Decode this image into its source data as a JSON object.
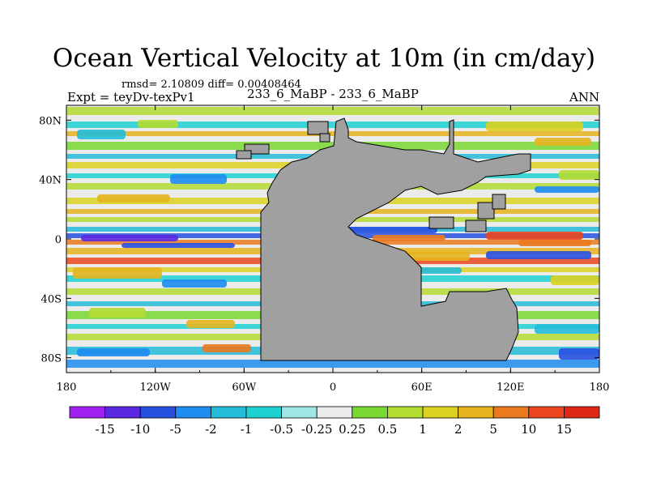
{
  "chart_data": {
    "type": "heatmap",
    "title": "Ocean Vertical Velocity at 10m (in cm/day)",
    "stats": "rmsd= 2.10809  diff= 0.00408464",
    "left_label": "Expt = teyDv-texPv1",
    "center_label": "233_6_MaBP - 233_6_MaBP",
    "right_label": "ANN",
    "units": "cm/day",
    "x_ticks": [
      "180",
      "120W",
      "60W",
      "0",
      "60E",
      "120E",
      "180"
    ],
    "y_ticks": [
      "80N",
      "40N",
      "0",
      "40S",
      "80S"
    ],
    "colorbar": {
      "labels": [
        "-15",
        "-10",
        "-5",
        "-2",
        "-1",
        "-0.5",
        "-0.25",
        "0.25",
        "0.5",
        "1",
        "2",
        "5",
        "10",
        "15"
      ],
      "colors": [
        "#a020f0",
        "#5a28e0",
        "#2850e0",
        "#1e8cf0",
        "#24bcd8",
        "#1ed2d2",
        "#9ee6e6",
        "#ebebeb",
        "#7ad832",
        "#b4dc32",
        "#dcd220",
        "#e6b41e",
        "#eb7a1e",
        "#eb461e",
        "#dc2814"
      ]
    },
    "land_color": "#a0a0a0",
    "nodata_color": "#ebebeb"
  }
}
